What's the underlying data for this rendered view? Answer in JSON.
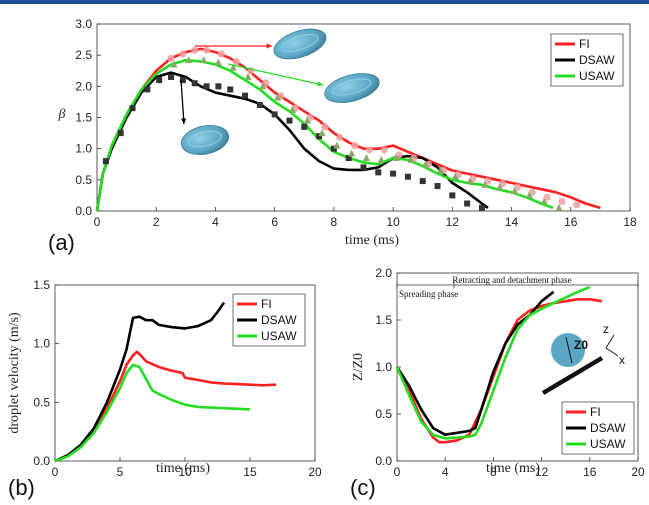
{
  "colors": {
    "FI": "#ff2020",
    "DSAW": "#000000",
    "USAW": "#22dd22",
    "droplet": "#5aa6c4"
  },
  "chart_data": [
    {
      "type": "line",
      "panel_label": "(a)",
      "xlabel": "time (ms)",
      "ylabel": "β",
      "xlim": [
        0,
        18
      ],
      "ylim": [
        0,
        3
      ],
      "xticks": [
        0,
        2,
        4,
        6,
        8,
        10,
        12,
        14,
        16,
        18
      ],
      "yticks": [
        "0.0",
        "0.5",
        "1.0",
        "1.5",
        "2.0",
        "2.5",
        "3.0"
      ],
      "legend": [
        "FI",
        "DSAW",
        "USAW"
      ],
      "series": [
        {
          "name": "FI",
          "color": "#ff2020",
          "x": [
            0,
            0.2,
            0.5,
            1,
            1.5,
            2,
            2.5,
            3,
            3.5,
            4,
            4.5,
            5,
            5.5,
            6,
            6.5,
            7,
            7.5,
            8,
            8.5,
            9,
            9.5,
            10,
            10.5,
            11,
            11.5,
            12,
            12.5,
            13,
            13.5,
            14,
            14.5,
            15,
            15.5,
            16,
            16.5,
            17
          ],
          "y": [
            0,
            0.6,
            1.05,
            1.55,
            1.95,
            2.25,
            2.45,
            2.55,
            2.6,
            2.55,
            2.45,
            2.3,
            2.1,
            1.9,
            1.75,
            1.6,
            1.45,
            1.25,
            1.1,
            1.0,
            1.0,
            1.05,
            0.95,
            0.85,
            0.75,
            0.65,
            0.6,
            0.55,
            0.5,
            0.45,
            0.4,
            0.35,
            0.3,
            0.22,
            0.12,
            0.05
          ]
        },
        {
          "name": "DSAW",
          "color": "#000000",
          "x": [
            0,
            0.2,
            0.5,
            1,
            1.5,
            2,
            2.5,
            3,
            3.5,
            4,
            4.5,
            5,
            5.5,
            6,
            6.5,
            7,
            7.5,
            8,
            8.5,
            9,
            9.5,
            10,
            10.5,
            11,
            11.5,
            12,
            12.5,
            13,
            13.2
          ],
          "y": [
            0,
            0.6,
            1.0,
            1.5,
            1.9,
            2.15,
            2.22,
            2.15,
            2.0,
            1.9,
            1.85,
            1.8,
            1.72,
            1.55,
            1.3,
            1.0,
            0.8,
            0.68,
            0.66,
            0.66,
            0.7,
            0.85,
            0.88,
            0.85,
            0.7,
            0.45,
            0.3,
            0.12,
            0.05
          ]
        },
        {
          "name": "USAW",
          "color": "#22dd22",
          "x": [
            0,
            0.2,
            0.5,
            1,
            1.5,
            2,
            2.5,
            3,
            3.5,
            4,
            4.5,
            5,
            5.5,
            6,
            6.5,
            7,
            7.5,
            8,
            8.5,
            9,
            9.5,
            10,
            10.5,
            11,
            11.5,
            12,
            12.5,
            13,
            13.5,
            14,
            14.5,
            15,
            15.4
          ],
          "y": [
            0,
            0.6,
            1.05,
            1.55,
            1.95,
            2.2,
            2.35,
            2.42,
            2.4,
            2.35,
            2.25,
            2.1,
            1.95,
            1.75,
            1.6,
            1.4,
            1.15,
            0.95,
            0.85,
            0.78,
            0.75,
            0.85,
            0.82,
            0.72,
            0.6,
            0.5,
            0.45,
            0.42,
            0.35,
            0.3,
            0.22,
            0.12,
            0.05
          ]
        },
        {
          "name": "",
          "marker": "square",
          "color": "#333333",
          "x": [
            0.3,
            0.8,
            1.2,
            1.7,
            2.1,
            2.5,
            2.9,
            3.3,
            3.7,
            4.1,
            4.5,
            5.0,
            5.5,
            6.0,
            6.5,
            7.0,
            7.5,
            8.0,
            8.5,
            9.0,
            9.5,
            10.0,
            10.5,
            11.0,
            11.5,
            12.0,
            12.5,
            13.0
          ],
          "y": [
            0.8,
            1.25,
            1.65,
            1.95,
            2.1,
            2.15,
            2.1,
            2.05,
            2.0,
            2.0,
            1.95,
            1.85,
            1.7,
            1.55,
            1.45,
            1.35,
            1.2,
            1.0,
            0.85,
            0.7,
            0.62,
            0.6,
            0.55,
            0.48,
            0.4,
            0.25,
            0.12,
            0.05
          ]
        },
        {
          "name": "",
          "marker": "circle",
          "color": "#f0a0a0",
          "x": [
            2.5,
            2.9,
            3.3,
            3.7,
            4.2,
            4.7,
            5.2,
            5.7,
            6.2,
            6.7,
            7.2,
            7.7,
            8.2,
            8.7,
            9.2,
            9.7,
            10.2,
            10.7,
            11.2,
            11.7,
            12.2,
            12.7,
            13.2,
            13.7,
            14.2,
            14.7,
            15.2,
            15.7,
            16.2
          ],
          "y": [
            2.45,
            2.52,
            2.58,
            2.58,
            2.52,
            2.4,
            2.25,
            2.05,
            1.85,
            1.65,
            1.5,
            1.35,
            1.18,
            1.05,
            0.98,
            0.98,
            0.9,
            0.85,
            0.75,
            0.65,
            0.58,
            0.52,
            0.48,
            0.44,
            0.38,
            0.3,
            0.22,
            0.15,
            0.1
          ]
        },
        {
          "name": "",
          "marker": "triangle",
          "color": "#88aa66",
          "x": [
            2.6,
            3.1,
            3.6,
            4.1,
            4.6,
            5.1,
            5.6,
            6.1,
            6.6,
            7.1,
            7.6,
            8.1,
            8.6,
            9.1,
            9.6,
            10.1,
            10.6,
            11.1,
            11.6,
            12.1,
            12.6,
            13.1,
            13.6,
            14.1,
            14.6,
            15.1,
            15.6
          ],
          "y": [
            2.35,
            2.42,
            2.42,
            2.38,
            2.3,
            2.15,
            2.0,
            1.82,
            1.62,
            1.45,
            1.25,
            1.05,
            0.92,
            0.85,
            0.82,
            0.85,
            0.82,
            0.75,
            0.65,
            0.55,
            0.48,
            0.42,
            0.38,
            0.32,
            0.25,
            0.15,
            0.05
          ]
        }
      ]
    },
    {
      "type": "line",
      "panel_label": "(b)",
      "xlabel": "time (ms)",
      "ylabel": "droplet velocity (m/s)",
      "xlim": [
        0,
        20
      ],
      "ylim": [
        0,
        1.5
      ],
      "xticks": [
        0,
        5,
        10,
        15,
        20
      ],
      "yticks": [
        "0.0",
        "0.5",
        "1.0",
        "1.5"
      ],
      "legend": [
        "FI",
        "DSAW",
        "USAW"
      ],
      "series": [
        {
          "name": "FI",
          "color": "#ff2020",
          "x": [
            0,
            1,
            2,
            3,
            4,
            5,
            5.5,
            6,
            6.3,
            6.6,
            7,
            8,
            9,
            9.8,
            10,
            11,
            12,
            13,
            14,
            15,
            16,
            17
          ],
          "y": [
            0,
            0.05,
            0.13,
            0.25,
            0.45,
            0.68,
            0.82,
            0.9,
            0.93,
            0.9,
            0.85,
            0.8,
            0.77,
            0.75,
            0.71,
            0.69,
            0.67,
            0.66,
            0.655,
            0.65,
            0.645,
            0.65
          ]
        },
        {
          "name": "DSAW",
          "color": "#000000",
          "x": [
            0,
            1,
            2,
            3,
            4,
            5,
            5.5,
            6,
            6.5,
            7,
            7.5,
            8,
            9,
            10,
            11,
            12,
            12.5,
            13
          ],
          "y": [
            0,
            0.05,
            0.14,
            0.28,
            0.5,
            0.78,
            0.95,
            1.22,
            1.23,
            1.2,
            1.2,
            1.16,
            1.14,
            1.13,
            1.15,
            1.2,
            1.27,
            1.35
          ]
        },
        {
          "name": "USAW",
          "color": "#22dd22",
          "x": [
            0,
            1,
            2,
            3,
            4,
            5,
            5.5,
            6,
            6.5,
            7,
            7.5,
            8,
            9,
            10,
            11,
            12,
            13,
            14,
            15
          ],
          "y": [
            0,
            0.04,
            0.12,
            0.24,
            0.42,
            0.62,
            0.75,
            0.82,
            0.8,
            0.7,
            0.6,
            0.57,
            0.52,
            0.48,
            0.46,
            0.455,
            0.45,
            0.445,
            0.44
          ]
        }
      ]
    },
    {
      "type": "line",
      "panel_label": "(c)",
      "xlabel": "time (ms)",
      "ylabel": "Z/Z0",
      "xlim": [
        0,
        20
      ],
      "ylim": [
        0,
        2.0
      ],
      "xticks": [
        0,
        4,
        8,
        12,
        16,
        20
      ],
      "yticks": [
        "0.0",
        "0.5",
        "1.0",
        "1.5",
        "2.0"
      ],
      "legend": [
        "FI",
        "DSAW",
        "USAW"
      ],
      "annotations": [
        "Retracting and detachment phase",
        "Spreading phase",
        "Z0",
        "z",
        "x"
      ],
      "series": [
        {
          "name": "FI",
          "color": "#ff2020",
          "x": [
            0,
            1,
            2,
            3,
            3.5,
            4,
            5,
            6,
            7,
            8,
            9,
            10,
            11,
            12,
            13,
            14,
            15,
            16,
            17
          ],
          "y": [
            1.0,
            0.75,
            0.45,
            0.25,
            0.2,
            0.2,
            0.22,
            0.28,
            0.55,
            0.9,
            1.25,
            1.5,
            1.6,
            1.65,
            1.68,
            1.7,
            1.72,
            1.72,
            1.7
          ]
        },
        {
          "name": "DSAW",
          "color": "#000000",
          "x": [
            0,
            1,
            2,
            3,
            4,
            5,
            6,
            6.5,
            7,
            8,
            9,
            10,
            11,
            12,
            13
          ],
          "y": [
            1.0,
            0.8,
            0.55,
            0.35,
            0.28,
            0.3,
            0.32,
            0.35,
            0.55,
            0.95,
            1.25,
            1.45,
            1.55,
            1.7,
            1.8
          ]
        },
        {
          "name": "USAW",
          "color": "#22dd22",
          "x": [
            0,
            1,
            2,
            3,
            4,
            5,
            6,
            6.5,
            7,
            8,
            9,
            10,
            11,
            12,
            13,
            14,
            15,
            16
          ],
          "y": [
            1.0,
            0.7,
            0.42,
            0.28,
            0.24,
            0.25,
            0.26,
            0.28,
            0.4,
            0.75,
            1.1,
            1.4,
            1.55,
            1.62,
            1.68,
            1.74,
            1.8,
            1.85
          ]
        }
      ]
    }
  ]
}
